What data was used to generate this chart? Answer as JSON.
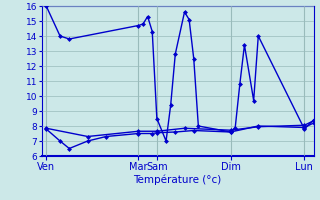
{
  "xlabel": "Température (°c)",
  "bg_color": "#cce8e8",
  "grid_color": "#99bbbb",
  "line_color": "#0000cc",
  "marker": "D",
  "markersize": 2.5,
  "linewidth": 1.0,
  "ylim": [
    6,
    16
  ],
  "yticks": [
    6,
    7,
    8,
    9,
    10,
    11,
    12,
    13,
    14,
    15,
    16
  ],
  "xlabel_fontsize": 7.5,
  "xtick_fontsize": 7,
  "ytick_fontsize": 6.5,
  "x_day_labels": [
    "Ven",
    "Mar",
    "Sam",
    "Dim",
    "Lun"
  ],
  "x_day_positions": [
    0,
    20,
    24,
    40,
    56
  ],
  "xlim": [
    -1,
    58
  ],
  "series1_x": [
    0,
    3,
    5,
    20,
    21,
    22,
    23,
    24,
    26,
    27,
    28,
    30,
    31,
    32,
    33,
    40,
    41,
    42,
    43,
    45,
    46,
    56,
    58
  ],
  "series1_y": [
    16,
    14,
    13.8,
    14.7,
    14.8,
    15.3,
    14.3,
    8.5,
    7.0,
    9.4,
    12.8,
    15.6,
    15.1,
    12.5,
    8.0,
    7.6,
    7.9,
    10.8,
    13.4,
    9.7,
    14.0,
    7.8,
    8.4
  ],
  "series2_x": [
    0,
    3,
    5,
    9,
    13,
    20,
    23,
    24,
    28,
    32,
    40,
    46,
    56,
    58
  ],
  "series2_y": [
    7.8,
    7.0,
    6.5,
    7.0,
    7.3,
    7.5,
    7.5,
    7.55,
    7.6,
    7.7,
    7.6,
    8.0,
    7.9,
    8.2
  ],
  "series3_x": [
    0,
    9,
    20,
    24,
    30,
    40,
    46,
    56,
    58
  ],
  "series3_y": [
    7.85,
    7.3,
    7.65,
    7.65,
    7.85,
    7.72,
    7.95,
    8.05,
    8.35
  ]
}
